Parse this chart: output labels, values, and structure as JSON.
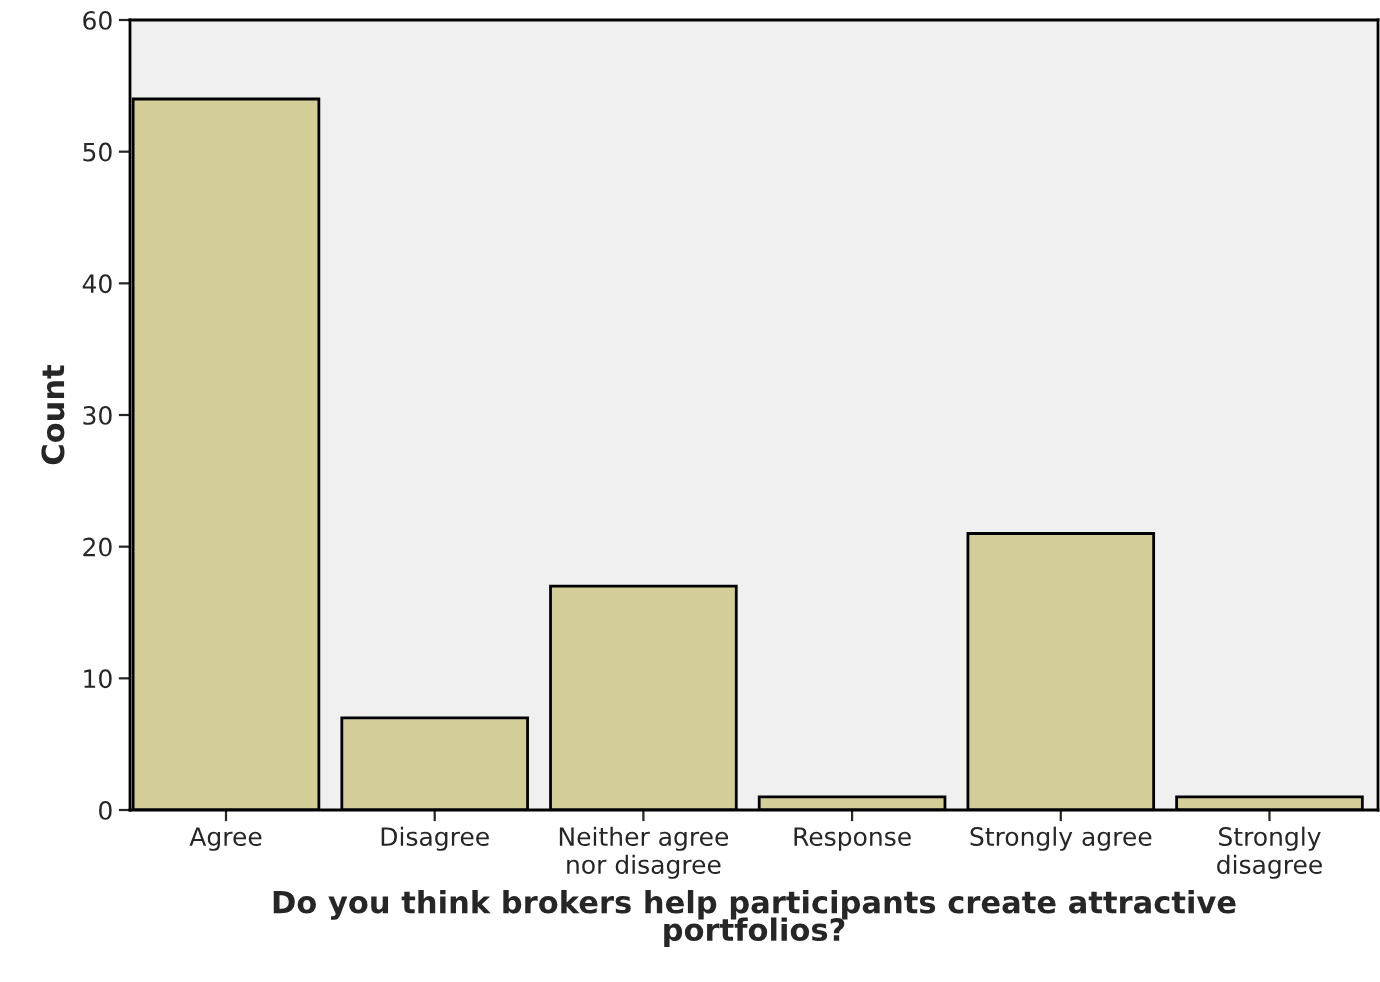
{
  "chart_data": {
    "type": "bar",
    "categories": [
      "Agree",
      "Disagree",
      "Neither agree\nnor disagree",
      "Response",
      "Strongly agree",
      "Strongly\ndisagree"
    ],
    "values": [
      54,
      7,
      17,
      1,
      21,
      1
    ],
    "color": "#d3ce97",
    "ylabel": "Count",
    "xlabel": "Do you think brokers help participants create attractive\nportfolios?",
    "ylim": [
      0,
      60
    ],
    "yticks": [
      0,
      10,
      20,
      30,
      40,
      50,
      60
    ],
    "grid": false
  }
}
